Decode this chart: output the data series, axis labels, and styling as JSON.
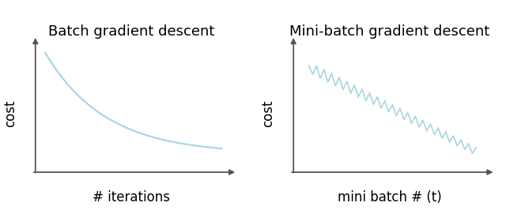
{
  "title_left": "Batch gradient descent",
  "title_right": "Mini-batch gradient descent",
  "xlabel_left": "# iterations",
  "xlabel_right": "mini batch # (t)",
  "ylabel": "cost",
  "curve_color": "#a8d4e6",
  "background_color": "#ffffff",
  "axis_color": "#555555",
  "title_fontsize": 13,
  "label_fontsize": 12,
  "ylabel_fontsize": 12
}
